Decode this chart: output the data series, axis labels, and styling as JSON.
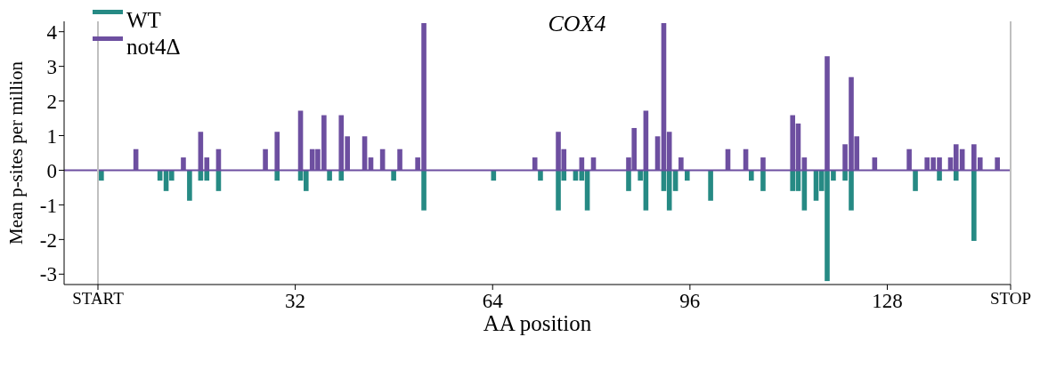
{
  "chart_data": {
    "type": "bar",
    "title": "COX4",
    "xlabel": "AA position",
    "ylabel": "Mean p-sites per million",
    "series": [
      {
        "name": "WT",
        "color": "#268a84",
        "x": [
          0.6,
          10.1,
          11.1,
          12.0,
          14.9,
          16.7,
          17.7,
          19.6,
          29.1,
          32.9,
          33.8,
          37.6,
          39.5,
          48.0,
          52.9,
          64.2,
          71.8,
          74.7,
          75.6,
          77.5,
          78.5,
          79.4,
          86.1,
          88.0,
          88.9,
          91.8,
          92.7,
          93.7,
          95.6,
          99.4,
          106.0,
          107.9,
          112.7,
          113.6,
          114.6,
          116.5,
          117.4,
          118.3,
          119.3,
          121.2,
          122.2,
          132.6,
          136.5,
          139.2,
          142.1
        ],
        "values": [
          -0.3,
          -0.3,
          -0.6,
          -0.3,
          -0.88,
          -0.3,
          -0.3,
          -0.6,
          -0.3,
          -0.3,
          -0.6,
          -0.3,
          -0.3,
          -0.3,
          -1.16,
          -0.3,
          -0.3,
          -1.16,
          -0.3,
          -0.3,
          -0.3,
          -1.16,
          -0.6,
          -0.3,
          -1.16,
          -0.6,
          -1.16,
          -0.6,
          -0.3,
          -0.88,
          -0.3,
          -0.6,
          -0.6,
          -0.6,
          -1.16,
          -0.88,
          -0.6,
          -3.2,
          -0.3,
          -0.3,
          -1.16,
          -0.6,
          -0.3,
          -0.3,
          -2.04
        ]
      },
      {
        "name": "not4Δ",
        "color": "#6d4fa0",
        "x": [
          6.2,
          13.9,
          16.7,
          17.7,
          19.6,
          27.2,
          29.1,
          32.9,
          34.8,
          35.7,
          36.7,
          39.5,
          40.5,
          43.3,
          44.3,
          46.2,
          49.0,
          51.9,
          52.9,
          70.9,
          74.7,
          75.6,
          78.5,
          80.4,
          86.1,
          87.0,
          88.9,
          90.8,
          91.8,
          92.7,
          94.6,
          102.2,
          105.1,
          107.9,
          112.7,
          113.6,
          114.6,
          118.3,
          121.2,
          122.2,
          123.1,
          126.0,
          131.6,
          134.5,
          135.5,
          136.5,
          138.3,
          139.2,
          140.2,
          142.1,
          143.1,
          145.9
        ],
        "values": [
          0.61,
          0.37,
          1.11,
          0.37,
          0.61,
          0.61,
          1.11,
          1.72,
          0.61,
          0.61,
          1.59,
          1.59,
          0.98,
          0.98,
          0.37,
          0.61,
          0.61,
          0.37,
          4.25,
          0.37,
          1.11,
          0.61,
          0.37,
          0.37,
          0.37,
          1.22,
          1.72,
          0.98,
          4.25,
          1.11,
          0.37,
          0.61,
          0.61,
          0.37,
          1.59,
          1.35,
          0.37,
          3.29,
          0.75,
          2.69,
          0.98,
          0.37,
          0.61,
          0.37,
          0.37,
          0.37,
          0.37,
          0.75,
          0.61,
          0.75,
          0.37,
          0.37
        ]
      }
    ],
    "xlim": [
      0,
      148
    ],
    "xticks": [
      {
        "value": 0,
        "label": "START"
      },
      32,
      64,
      96,
      128,
      {
        "value": 148,
        "label": "STOP"
      }
    ],
    "ylim": [
      -3.3,
      4.3
    ],
    "yticks": [
      -3,
      -2,
      -1,
      0,
      1,
      2,
      3,
      4
    ],
    "ref_lines": [
      {
        "axis": "y",
        "value": 0,
        "color": "#6d4fa0"
      },
      {
        "axis": "x",
        "value": 0,
        "color": "#c0c0c0"
      },
      {
        "axis": "x",
        "value": 148,
        "color": "#c0c0c0"
      }
    ],
    "grid": false,
    "legend": "top left"
  }
}
